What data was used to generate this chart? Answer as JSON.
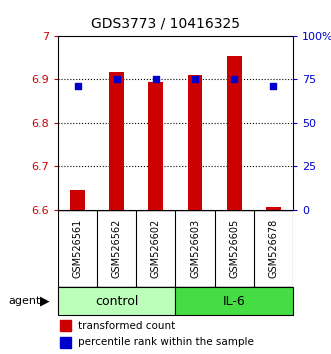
{
  "title": "GDS3773 / 10416325",
  "samples": [
    "GSM526561",
    "GSM526562",
    "GSM526602",
    "GSM526603",
    "GSM526605",
    "GSM526678"
  ],
  "groups": [
    "control",
    "control",
    "control",
    "IL-6",
    "IL-6",
    "IL-6"
  ],
  "bar_values": [
    6.645,
    6.918,
    6.895,
    6.91,
    6.955,
    6.605
  ],
  "percentile_values": [
    71,
    75,
    75,
    75,
    75,
    71
  ],
  "bar_bottom": 6.6,
  "ylim_left": [
    6.6,
    7.0
  ],
  "ylim_right": [
    0,
    100
  ],
  "yticks_left": [
    6.6,
    6.7,
    6.8,
    6.9,
    7.0
  ],
  "yticks_right": [
    0,
    25,
    50,
    75,
    100
  ],
  "ytick_labels_left": [
    "6.6",
    "6.7",
    "6.8",
    "6.9",
    "7"
  ],
  "ytick_labels_right": [
    "0",
    "25",
    "50",
    "75",
    "100%"
  ],
  "bar_color": "#cc0000",
  "dot_color": "#0000cc",
  "control_color": "#bbffbb",
  "il6_color": "#44dd44",
  "group_label_control": "control",
  "group_label_il6": "IL-6",
  "agent_label": "agent",
  "legend_bar_label": "transformed count",
  "legend_dot_label": "percentile rank within the sample",
  "background_color": "#ffffff",
  "sample_bg": "#c8c8c8",
  "n_control": 3,
  "n_il6": 3
}
